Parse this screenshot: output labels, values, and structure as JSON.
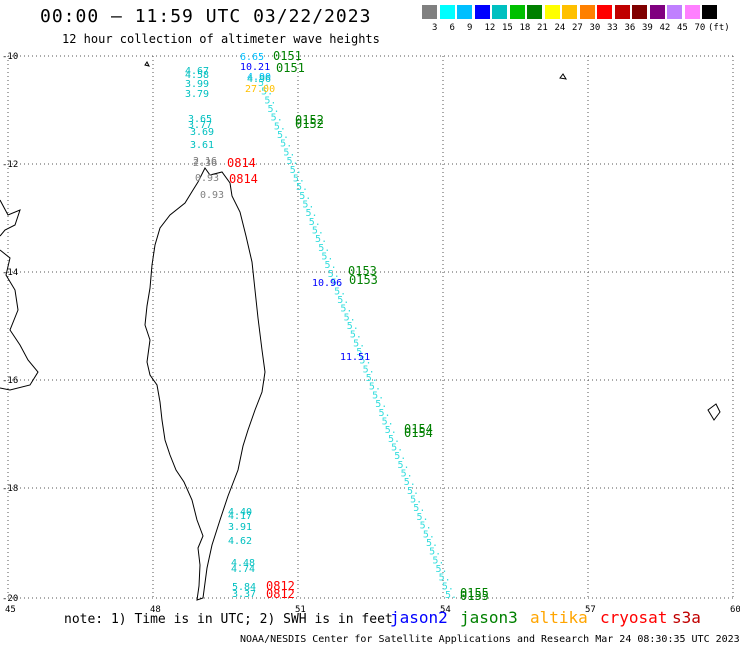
{
  "header": {
    "title": "00:00 – 11:59 UTC 03/22/2023",
    "subtitle": "12 hour collection of altimeter wave heights"
  },
  "scale": {
    "unit": "(ft)",
    "labels": [
      "3",
      "6",
      "9",
      "12",
      "15",
      "18",
      "21",
      "24",
      "27",
      "30",
      "33",
      "36",
      "39",
      "42",
      "45",
      "70"
    ],
    "colors": [
      "#808080",
      "#00ffff",
      "#00bfff",
      "#0000ff",
      "#00c0c0",
      "#00c000",
      "#008000",
      "#ffff00",
      "#ffc000",
      "#ff8000",
      "#ff0000",
      "#c00000",
      "#800000",
      "#800080",
      "#c080ff",
      "#ff80ff",
      "#000000"
    ]
  },
  "map": {
    "lat_ticks": [
      "-10",
      "-12",
      "-14",
      "-16",
      "-18",
      "-20"
    ],
    "lon_ticks": [
      "45",
      "48",
      "51",
      "54",
      "57",
      "60"
    ]
  },
  "track_labels": {
    "times": [
      {
        "text": "0151",
        "color": "#008000"
      },
      {
        "text": "0151",
        "color": "#008000"
      },
      {
        "text": "0152",
        "color": "#008000"
      },
      {
        "text": "0152",
        "color": "#008000"
      },
      {
        "text": "0153",
        "color": "#008000"
      },
      {
        "text": "0153",
        "color": "#008000"
      },
      {
        "text": "0154",
        "color": "#008000"
      },
      {
        "text": "0154",
        "color": "#008000"
      },
      {
        "text": "0155",
        "color": "#008000"
      },
      {
        "text": "0155",
        "color": "#008000"
      },
      {
        "text": "0814",
        "color": "#ff0000"
      },
      {
        "text": "0814",
        "color": "#ff0000"
      },
      {
        "text": "0812",
        "color": "#ff0000"
      },
      {
        "text": "0812",
        "color": "#ff0000"
      }
    ],
    "values": [
      {
        "text": "6.65",
        "color": "#00bfff"
      },
      {
        "text": "10.21",
        "color": "#0000ff"
      },
      {
        "text": "4.90",
        "color": "#00bfff"
      },
      {
        "text": "4.96",
        "color": "#00c0c0"
      },
      {
        "text": "27.00",
        "color": "#ffc000"
      },
      {
        "text": "10.96",
        "color": "#0000ff"
      },
      {
        "text": "11.51",
        "color": "#0000ff"
      },
      {
        "text": "4.67",
        "color": "#00c0c0"
      },
      {
        "text": "4.58",
        "color": "#00c0c0"
      },
      {
        "text": "3.99",
        "color": "#00c0c0"
      },
      {
        "text": "3.79",
        "color": "#00c0c0"
      },
      {
        "text": "3.65",
        "color": "#00c0c0"
      },
      {
        "text": "3.77",
        "color": "#00c0c0"
      },
      {
        "text": "3.69",
        "color": "#00c0c0"
      },
      {
        "text": "3.61",
        "color": "#00c0c0"
      },
      {
        "text": "2.16",
        "color": "#808080"
      },
      {
        "text": "2.36",
        "color": "#808080"
      },
      {
        "text": "0.93",
        "color": "#808080"
      },
      {
        "text": "0.93",
        "color": "#808080"
      },
      {
        "text": "4.40",
        "color": "#00c0c0"
      },
      {
        "text": "4.17",
        "color": "#00c0c0"
      },
      {
        "text": "3.91",
        "color": "#00c0c0"
      },
      {
        "text": "4.62",
        "color": "#00c0c0"
      },
      {
        "text": "4.48",
        "color": "#00c0c0"
      },
      {
        "text": "4.74",
        "color": "#00c0c0"
      },
      {
        "text": "5.84",
        "color": "#00c0c0"
      },
      {
        "text": "3.37",
        "color": "#00c0c0"
      }
    ]
  },
  "footer": {
    "note": "note: 1) Time is in UTC; 2) SWH is in feet",
    "satellites": [
      {
        "name": "jason2",
        "color": "#0000ff"
      },
      {
        "name": "jason3",
        "color": "#008000"
      },
      {
        "name": "altika",
        "color": "#ffa500"
      },
      {
        "name": "cryosat",
        "color": "#ff0000"
      },
      {
        "name": "s3a",
        "color": "#c00000"
      }
    ],
    "credit": "NOAA/NESDIS Center for Satellite Applications and Research    Mar 24 08:30:35 UTC 2023"
  }
}
